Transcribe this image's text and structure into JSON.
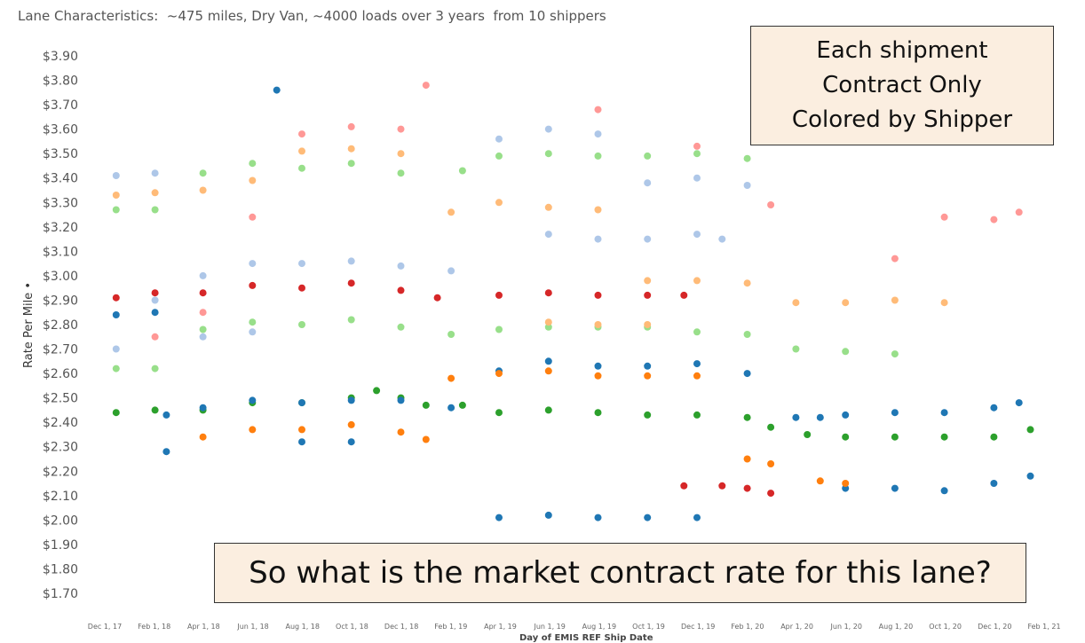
{
  "chart_data": {
    "type": "scatter",
    "title": "Lane Characteristics:  ~475 miles, Dry Van, ~4000 loads over 3 years  from 10 shippers",
    "ylabel": "Rate Per Mile",
    "xlabel": "Day of EMIS REF Ship Date",
    "ylim": [
      1.7,
      3.9
    ],
    "y_ticks": [
      "$3.90",
      "$3.80",
      "$3.70",
      "$3.60",
      "$3.50",
      "$3.40",
      "$3.30",
      "$3.20",
      "$3.10",
      "$3.00",
      "$2.90",
      "$2.80",
      "$2.70",
      "$2.60",
      "$2.50",
      "$2.40",
      "$2.30",
      "$2.20",
      "$2.10",
      "$2.00",
      "$1.90",
      "$1.80",
      "$1.70"
    ],
    "x_ticks": [
      "Dec 1, 17",
      "Feb 1, 18",
      "Apr 1, 18",
      "Jun 1, 18",
      "Aug 1, 18",
      "Oct 1, 18",
      "Dec 1, 18",
      "Feb 1, 19",
      "Apr 1, 19",
      "Jun 1, 19",
      "Aug 1, 19",
      "Oct 1, 19",
      "Dec 1, 19",
      "Feb 1, 20",
      "Apr 1, 20",
      "Jun 1, 20",
      "Aug 1, 20",
      "Oct 1, 20",
      "Dec 1, 20",
      "Feb 1, 21"
    ],
    "grid": false,
    "legend": "none",
    "series": [
      {
        "color": "#2ca02c",
        "points": [
          [
            "2017-12-15",
            2.44
          ],
          [
            "2018-02-01",
            2.45
          ],
          [
            "2018-04-01",
            2.45
          ],
          [
            "2018-06-01",
            2.48
          ],
          [
            "2018-08-01",
            2.48
          ],
          [
            "2018-10-01",
            2.5
          ],
          [
            "2018-11-01",
            2.53
          ],
          [
            "2018-12-01",
            2.5
          ],
          [
            "2019-01-01",
            2.47
          ],
          [
            "2019-02-15",
            2.47
          ],
          [
            "2019-04-01",
            2.44
          ],
          [
            "2019-06-01",
            2.45
          ],
          [
            "2019-08-01",
            2.44
          ],
          [
            "2019-10-01",
            2.43
          ],
          [
            "2019-12-01",
            2.43
          ],
          [
            "2020-02-01",
            2.42
          ],
          [
            "2020-03-01",
            2.38
          ],
          [
            "2020-04-15",
            2.35
          ],
          [
            "2020-06-01",
            2.34
          ],
          [
            "2020-08-01",
            2.34
          ],
          [
            "2020-10-01",
            2.34
          ],
          [
            "2020-12-01",
            2.34
          ],
          [
            "2021-01-15",
            2.37
          ]
        ]
      },
      {
        "color": "#d62728",
        "points": [
          [
            "2017-12-15",
            2.91
          ],
          [
            "2018-02-01",
            2.93
          ],
          [
            "2018-04-01",
            2.93
          ],
          [
            "2018-06-01",
            2.96
          ],
          [
            "2018-08-01",
            2.95
          ],
          [
            "2018-10-01",
            2.97
          ],
          [
            "2018-12-01",
            2.94
          ],
          [
            "2019-01-15",
            2.91
          ],
          [
            "2019-04-01",
            2.92
          ],
          [
            "2019-06-01",
            2.93
          ],
          [
            "2019-08-01",
            2.92
          ],
          [
            "2019-10-01",
            2.92
          ],
          [
            "2019-11-15",
            2.92
          ],
          [
            "2019-11-15",
            2.14
          ],
          [
            "2020-01-01",
            2.14
          ],
          [
            "2020-02-01",
            2.13
          ],
          [
            "2020-03-01",
            2.11
          ]
        ]
      },
      {
        "color": "#98df8a",
        "points": [
          [
            "2017-12-15",
            3.27
          ],
          [
            "2018-02-01",
            3.27
          ],
          [
            "2018-04-01",
            3.42
          ],
          [
            "2018-06-01",
            3.46
          ],
          [
            "2018-08-01",
            3.44
          ],
          [
            "2018-10-01",
            3.46
          ],
          [
            "2018-12-01",
            3.42
          ],
          [
            "2019-02-15",
            3.43
          ],
          [
            "2019-04-01",
            3.49
          ],
          [
            "2019-06-01",
            3.5
          ],
          [
            "2019-08-01",
            3.49
          ],
          [
            "2019-10-01",
            3.49
          ],
          [
            "2019-12-01",
            3.5
          ],
          [
            "2020-02-01",
            3.48
          ],
          [
            "2017-12-15",
            2.62
          ],
          [
            "2018-02-01",
            2.62
          ],
          [
            "2018-04-01",
            2.78
          ],
          [
            "2018-06-01",
            2.81
          ],
          [
            "2018-08-01",
            2.8
          ],
          [
            "2018-10-01",
            2.82
          ],
          [
            "2018-12-01",
            2.79
          ],
          [
            "2019-02-01",
            2.76
          ],
          [
            "2019-04-01",
            2.78
          ],
          [
            "2019-06-01",
            2.79
          ],
          [
            "2019-08-01",
            2.79
          ],
          [
            "2019-10-01",
            2.79
          ],
          [
            "2019-12-01",
            2.77
          ],
          [
            "2020-02-01",
            2.76
          ],
          [
            "2020-04-01",
            2.7
          ],
          [
            "2020-06-01",
            2.69
          ],
          [
            "2020-08-01",
            2.68
          ]
        ]
      },
      {
        "color": "#ffbb78",
        "points": [
          [
            "2017-12-15",
            3.33
          ],
          [
            "2018-02-01",
            3.34
          ],
          [
            "2018-04-01",
            3.35
          ],
          [
            "2018-06-01",
            3.39
          ],
          [
            "2018-08-01",
            3.51
          ],
          [
            "2018-10-01",
            3.52
          ],
          [
            "2018-12-01",
            3.5
          ],
          [
            "2019-02-01",
            3.26
          ],
          [
            "2019-04-01",
            3.3
          ],
          [
            "2019-06-01",
            3.28
          ],
          [
            "2019-08-01",
            3.27
          ],
          [
            "2019-10-01",
            2.98
          ],
          [
            "2019-12-01",
            2.98
          ],
          [
            "2020-02-01",
            2.97
          ],
          [
            "2020-04-01",
            2.89
          ],
          [
            "2020-06-01",
            2.89
          ],
          [
            "2020-08-01",
            2.9
          ],
          [
            "2020-10-01",
            2.89
          ],
          [
            "2019-06-01",
            2.81
          ],
          [
            "2019-08-01",
            2.8
          ],
          [
            "2019-10-01",
            2.8
          ]
        ]
      },
      {
        "color": "#aec7e8",
        "points": [
          [
            "2017-12-15",
            3.41
          ],
          [
            "2018-02-01",
            3.42
          ],
          [
            "2018-04-01",
            3.0
          ],
          [
            "2018-06-01",
            3.05
          ],
          [
            "2018-08-01",
            3.05
          ],
          [
            "2018-10-01",
            3.06
          ],
          [
            "2018-12-01",
            3.04
          ],
          [
            "2019-02-01",
            3.02
          ],
          [
            "2019-04-01",
            3.56
          ],
          [
            "2019-06-01",
            3.6
          ],
          [
            "2019-08-01",
            3.58
          ],
          [
            "2019-10-01",
            3.38
          ],
          [
            "2019-12-01",
            3.4
          ],
          [
            "2020-02-01",
            3.37
          ],
          [
            "2019-06-01",
            3.17
          ],
          [
            "2019-08-01",
            3.15
          ],
          [
            "2019-10-01",
            3.15
          ],
          [
            "2019-12-01",
            3.17
          ],
          [
            "2020-01-01",
            3.15
          ],
          [
            "2017-12-15",
            2.7
          ],
          [
            "2018-02-01",
            2.9
          ],
          [
            "2018-04-01",
            2.75
          ],
          [
            "2018-06-01",
            2.77
          ]
        ]
      },
      {
        "color": "#1f77b4",
        "points": [
          [
            "2017-12-15",
            2.84
          ],
          [
            "2018-02-01",
            2.85
          ],
          [
            "2018-02-15",
            2.43
          ],
          [
            "2018-04-01",
            2.46
          ],
          [
            "2018-06-01",
            2.49
          ],
          [
            "2018-08-01",
            2.48
          ],
          [
            "2018-10-01",
            2.49
          ],
          [
            "2018-12-01",
            2.49
          ],
          [
            "2019-02-01",
            2.46
          ],
          [
            "2019-04-01",
            2.61
          ],
          [
            "2019-06-01",
            2.65
          ],
          [
            "2019-08-01",
            2.63
          ],
          [
            "2019-10-01",
            2.63
          ],
          [
            "2019-12-01",
            2.64
          ],
          [
            "2020-02-01",
            2.6
          ],
          [
            "2020-04-01",
            2.42
          ],
          [
            "2020-05-01",
            2.42
          ],
          [
            "2020-06-01",
            2.43
          ],
          [
            "2020-08-01",
            2.44
          ],
          [
            "2020-10-01",
            2.44
          ],
          [
            "2020-12-01",
            2.46
          ],
          [
            "2021-01-01",
            2.48
          ],
          [
            "2019-04-01",
            2.01
          ],
          [
            "2019-06-01",
            2.02
          ],
          [
            "2019-08-01",
            2.01
          ],
          [
            "2019-10-01",
            2.01
          ],
          [
            "2019-12-01",
            2.01
          ],
          [
            "2020-06-01",
            2.13
          ],
          [
            "2020-08-01",
            2.13
          ],
          [
            "2020-10-01",
            2.12
          ],
          [
            "2020-12-01",
            2.15
          ],
          [
            "2021-01-15",
            2.18
          ],
          [
            "2018-02-15",
            2.28
          ],
          [
            "2018-08-01",
            2.32
          ],
          [
            "2018-10-01",
            2.32
          ],
          [
            "2018-07-01",
            3.76
          ]
        ]
      },
      {
        "color": "#ff7f0e",
        "points": [
          [
            "2018-04-01",
            2.34
          ],
          [
            "2018-06-01",
            2.37
          ],
          [
            "2018-08-01",
            2.37
          ],
          [
            "2018-10-01",
            2.39
          ],
          [
            "2018-12-01",
            2.36
          ],
          [
            "2019-01-01",
            2.33
          ],
          [
            "2019-02-01",
            2.58
          ],
          [
            "2019-04-01",
            2.6
          ],
          [
            "2019-06-01",
            2.61
          ],
          [
            "2019-08-01",
            2.59
          ],
          [
            "2019-10-01",
            2.59
          ],
          [
            "2019-12-01",
            2.59
          ],
          [
            "2020-02-01",
            2.25
          ],
          [
            "2020-03-01",
            2.23
          ],
          [
            "2020-05-01",
            2.16
          ],
          [
            "2020-06-01",
            2.15
          ]
        ]
      },
      {
        "color": "#ff9896",
        "points": [
          [
            "2018-02-01",
            2.75
          ],
          [
            "2018-04-01",
            2.85
          ],
          [
            "2018-06-01",
            3.24
          ],
          [
            "2018-08-01",
            3.58
          ],
          [
            "2018-10-01",
            3.61
          ],
          [
            "2018-12-01",
            3.6
          ],
          [
            "2019-01-01",
            3.78
          ],
          [
            "2019-08-01",
            3.68
          ],
          [
            "2019-12-01",
            3.53
          ],
          [
            "2020-03-01",
            3.29
          ],
          [
            "2020-08-01",
            3.07
          ],
          [
            "2020-10-01",
            3.24
          ],
          [
            "2020-12-01",
            3.23
          ],
          [
            "2021-01-01",
            3.26
          ]
        ]
      }
    ]
  },
  "annotations": {
    "box1": [
      "Each shipment",
      "Contract Only",
      "Colored by Shipper"
    ],
    "box2": "So what is the market contract rate for this lane?"
  }
}
